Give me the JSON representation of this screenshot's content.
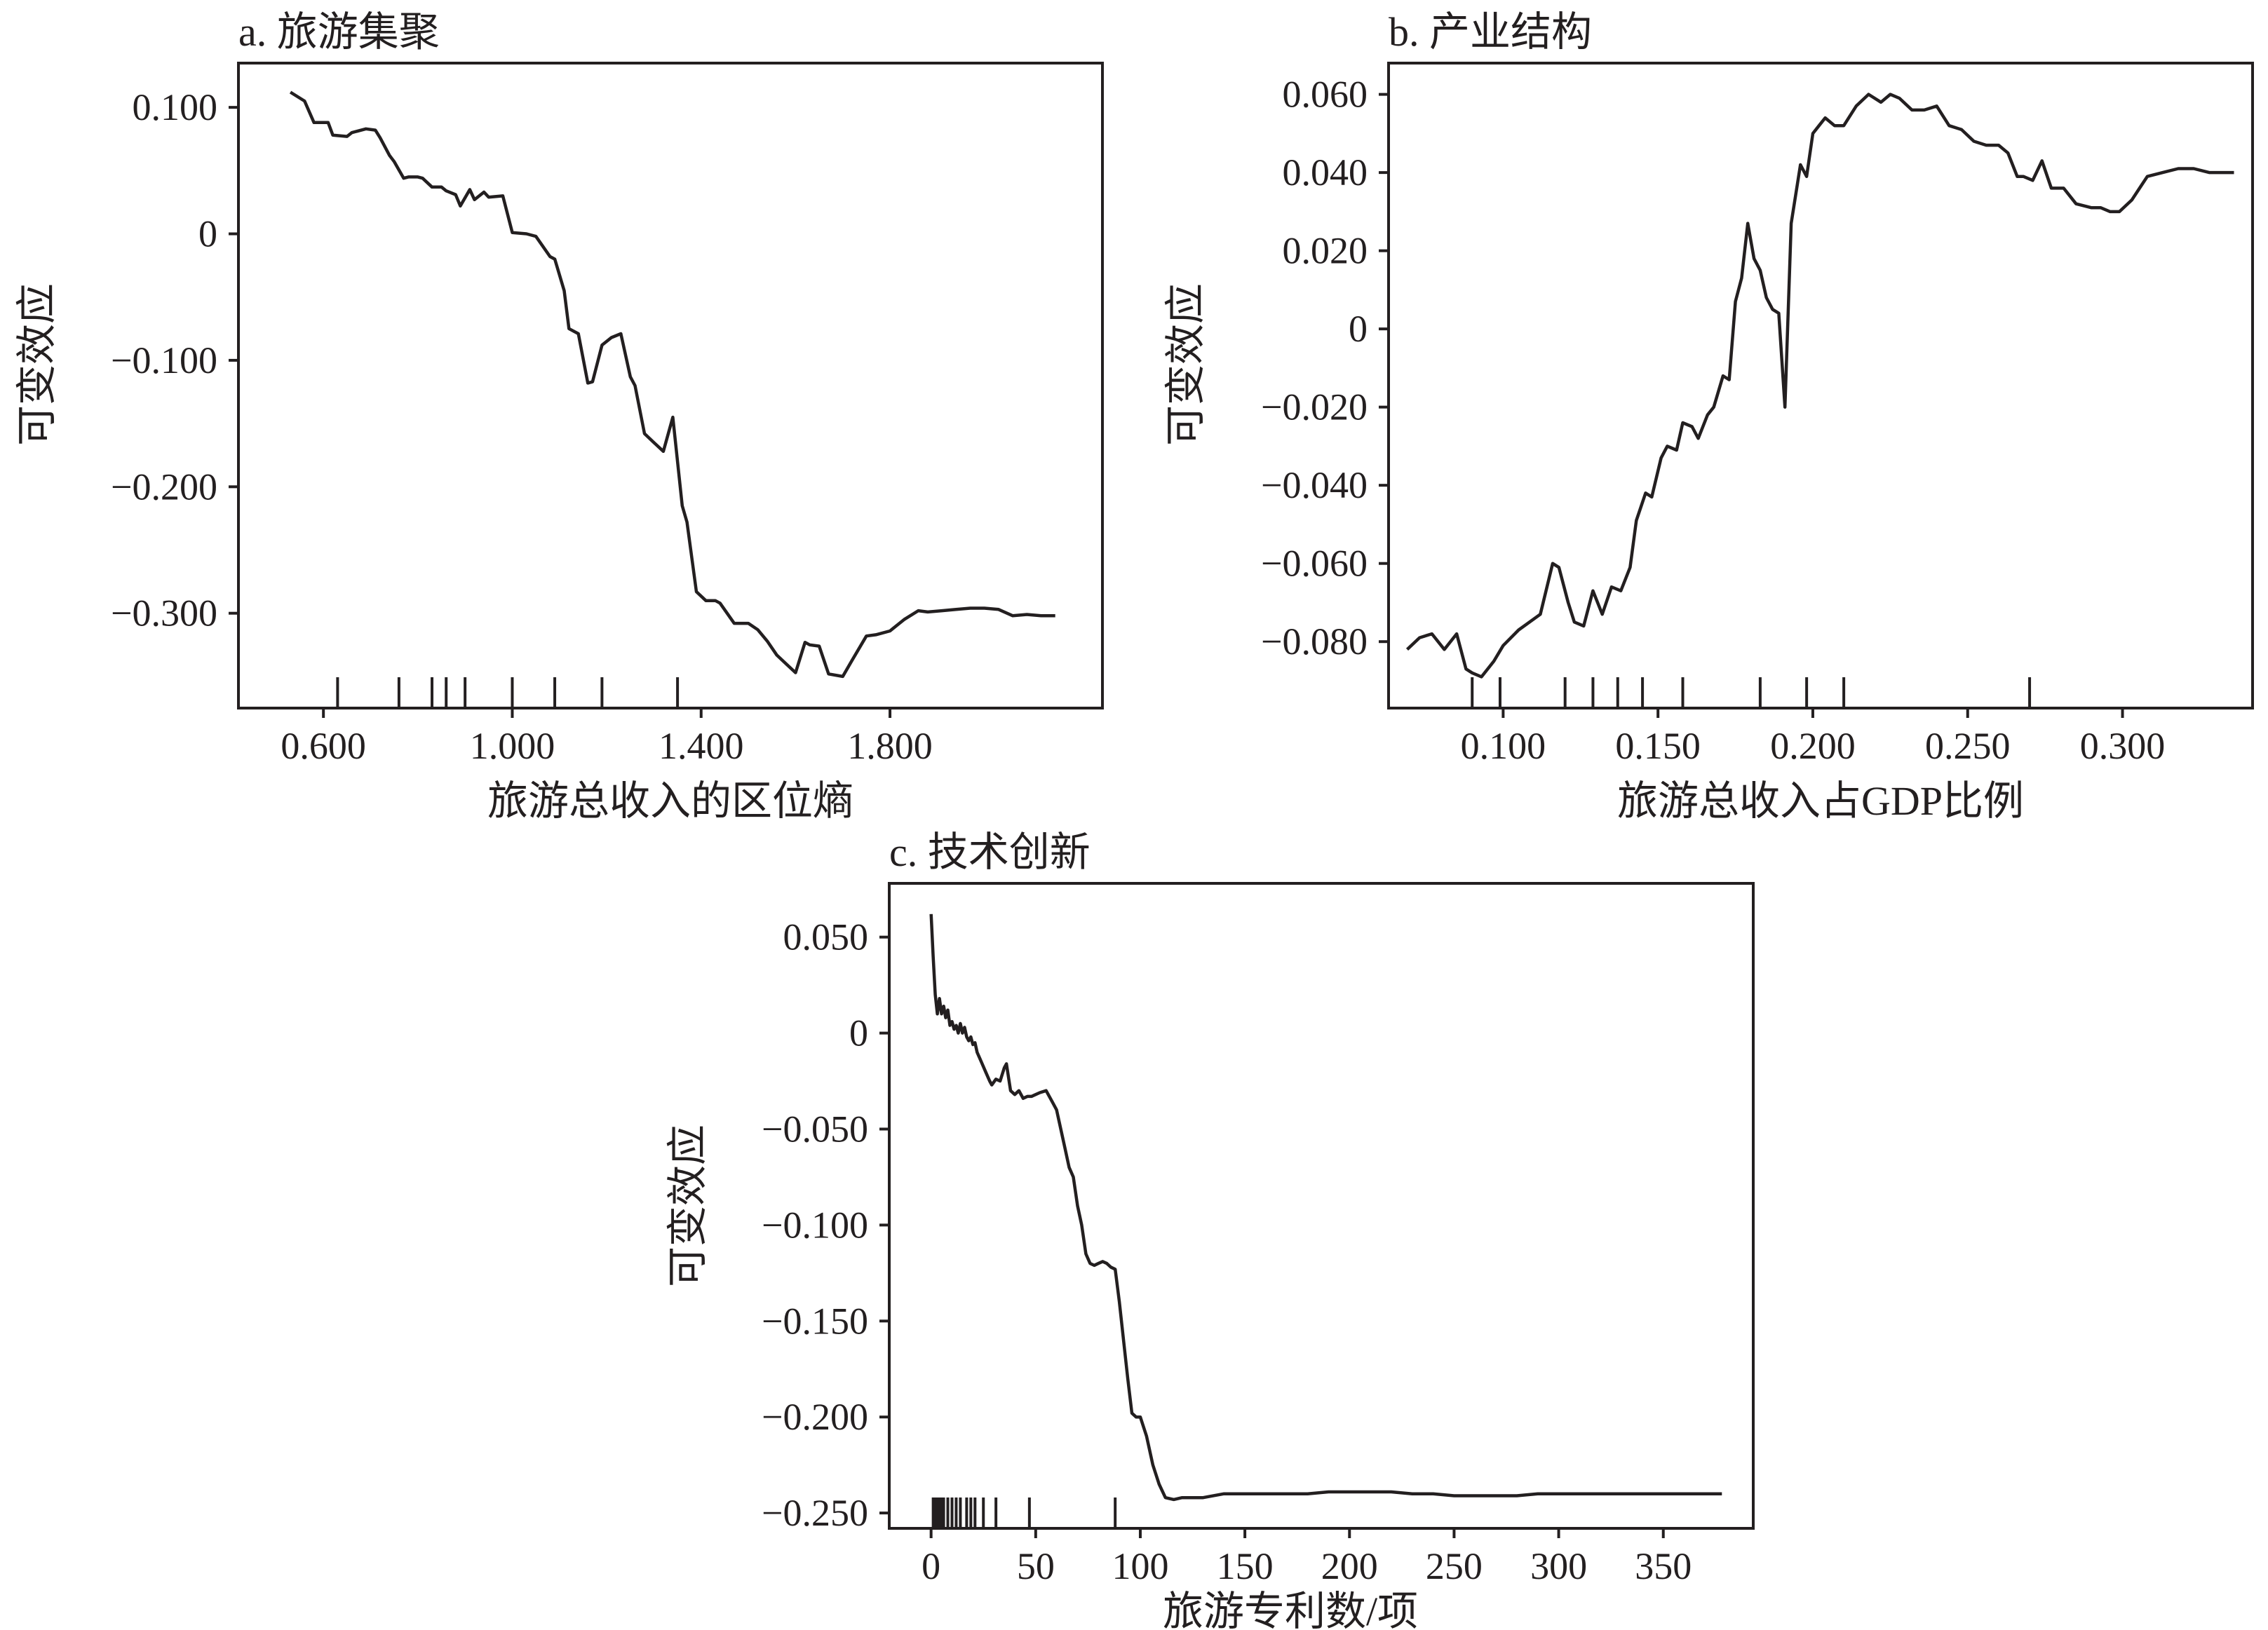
{
  "chart_data": [
    {
      "type": "line",
      "title": "a. 旅游集聚",
      "xlabel": "旅游总收入的区位熵",
      "ylabel": "可变效应",
      "xlim": [
        0.42,
        2.25
      ],
      "ylim": [
        -0.375,
        0.135
      ],
      "xticks": [
        0.6,
        1.0,
        1.4,
        1.8
      ],
      "xtick_labels": [
        "0.600",
        "1.000",
        "1.400",
        "1.800"
      ],
      "yticks": [
        0.1,
        0,
        -0.1,
        -0.2,
        -0.3
      ],
      "ytick_labels": [
        "0.100",
        "0",
        "−0.100",
        "−0.200",
        "−0.300"
      ],
      "rug": [
        0.63,
        0.76,
        0.83,
        0.86,
        0.9,
        1.0,
        1.09,
        1.19,
        1.35
      ],
      "series": [
        {
          "x": [
            0.53,
            0.56,
            0.58,
            0.61,
            0.62,
            0.65,
            0.66,
            0.69,
            0.71,
            0.72,
            0.74,
            0.75,
            0.77,
            0.78,
            0.8,
            0.81,
            0.83,
            0.85,
            0.86,
            0.88,
            0.89,
            0.91,
            0.92,
            0.94,
            0.95,
            0.98,
            1.0,
            1.03,
            1.05,
            1.08,
            1.09,
            1.11,
            1.12,
            1.14,
            1.16,
            1.17,
            1.19,
            1.21,
            1.23,
            1.25,
            1.26,
            1.28,
            1.3,
            1.32,
            1.34,
            1.36,
            1.37,
            1.39,
            1.41,
            1.43,
            1.44,
            1.47,
            1.5,
            1.52,
            1.54,
            1.56,
            1.58,
            1.6,
            1.62,
            1.63,
            1.65,
            1.67,
            1.7,
            1.72,
            1.75,
            1.77,
            1.8,
            1.83,
            1.86,
            1.88,
            1.91,
            1.94,
            1.97,
            2.0,
            2.03,
            2.06,
            2.09,
            2.12,
            2.15
          ],
          "y": [
            0.112,
            0.105,
            0.088,
            0.088,
            0.078,
            0.077,
            0.08,
            0.083,
            0.082,
            0.076,
            0.062,
            0.057,
            0.044,
            0.045,
            0.045,
            0.044,
            0.037,
            0.037,
            0.034,
            0.031,
            0.022,
            0.035,
            0.027,
            0.033,
            0.029,
            0.03,
            0.001,
            0.0,
            -0.002,
            -0.018,
            -0.02,
            -0.045,
            -0.075,
            -0.079,
            -0.118,
            -0.117,
            -0.088,
            -0.082,
            -0.079,
            -0.113,
            -0.12,
            -0.158,
            -0.165,
            -0.172,
            -0.145,
            -0.215,
            -0.228,
            -0.283,
            -0.29,
            -0.29,
            -0.292,
            -0.308,
            -0.308,
            -0.313,
            -0.322,
            -0.333,
            -0.34,
            -0.347,
            -0.323,
            -0.325,
            -0.326,
            -0.348,
            -0.35,
            -0.337,
            -0.318,
            -0.317,
            -0.314,
            -0.305,
            -0.298,
            -0.299,
            -0.298,
            -0.297,
            -0.296,
            -0.296,
            -0.297,
            -0.302,
            -0.301,
            -0.302,
            -0.302
          ]
        }
      ]
    },
    {
      "type": "line",
      "title": "b. 产业结构",
      "xlabel": "旅游总收入占GDP比例",
      "ylabel": "可变效应",
      "xlim": [
        0.063,
        0.342
      ],
      "ylim": [
        -0.097,
        0.068
      ],
      "xticks": [
        0.1,
        0.15,
        0.2,
        0.25,
        0.3
      ],
      "xtick_labels": [
        "0.100",
        "0.150",
        "0.200",
        "0.250",
        "0.300"
      ],
      "yticks": [
        0.06,
        0.04,
        0.02,
        0,
        -0.02,
        -0.04,
        -0.06,
        -0.08
      ],
      "ytick_labels": [
        "0.060",
        "0.040",
        "0.020",
        "0",
        "−0.020",
        "−0.040",
        "−0.060",
        "−0.080"
      ],
      "rug": [
        0.09,
        0.099,
        0.12,
        0.129,
        0.137,
        0.145,
        0.158,
        0.183,
        0.198,
        0.21,
        0.27
      ],
      "series": [
        {
          "x": [
            0.069,
            0.073,
            0.077,
            0.081,
            0.085,
            0.088,
            0.09,
            0.093,
            0.097,
            0.1,
            0.105,
            0.112,
            0.116,
            0.118,
            0.121,
            0.123,
            0.126,
            0.129,
            0.132,
            0.135,
            0.138,
            0.141,
            0.143,
            0.146,
            0.148,
            0.151,
            0.153,
            0.156,
            0.158,
            0.161,
            0.163,
            0.166,
            0.168,
            0.171,
            0.173,
            0.175,
            0.177,
            0.179,
            0.181,
            0.183,
            0.185,
            0.187,
            0.189,
            0.191,
            0.193,
            0.196,
            0.198,
            0.2,
            0.202,
            0.204,
            0.207,
            0.21,
            0.214,
            0.218,
            0.222,
            0.225,
            0.228,
            0.232,
            0.236,
            0.24,
            0.244,
            0.248,
            0.252,
            0.256,
            0.26,
            0.263,
            0.266,
            0.268,
            0.271,
            0.274,
            0.277,
            0.281,
            0.285,
            0.29,
            0.293,
            0.296,
            0.299,
            0.303,
            0.308,
            0.313,
            0.318,
            0.323,
            0.328,
            0.333,
            0.336
          ],
          "y": [
            -0.082,
            -0.079,
            -0.078,
            -0.082,
            -0.078,
            -0.087,
            -0.088,
            -0.089,
            -0.085,
            -0.081,
            -0.077,
            -0.073,
            -0.06,
            -0.061,
            -0.07,
            -0.075,
            -0.076,
            -0.067,
            -0.073,
            -0.066,
            -0.067,
            -0.061,
            -0.049,
            -0.042,
            -0.043,
            -0.033,
            -0.03,
            -0.031,
            -0.024,
            -0.025,
            -0.028,
            -0.022,
            -0.02,
            -0.012,
            -0.013,
            0.007,
            0.013,
            0.027,
            0.018,
            0.015,
            0.008,
            0.005,
            0.004,
            -0.02,
            0.027,
            0.042,
            0.039,
            0.05,
            0.052,
            0.054,
            0.052,
            0.052,
            0.057,
            0.06,
            0.058,
            0.06,
            0.059,
            0.056,
            0.056,
            0.057,
            0.052,
            0.051,
            0.048,
            0.047,
            0.047,
            0.045,
            0.039,
            0.039,
            0.038,
            0.043,
            0.036,
            0.036,
            0.032,
            0.031,
            0.031,
            0.03,
            0.03,
            0.033,
            0.039,
            0.04,
            0.041,
            0.041,
            0.04,
            0.04,
            0.04
          ]
        }
      ]
    },
    {
      "type": "line",
      "title": "c. 技术创新",
      "xlabel": "旅游专利数/项",
      "ylabel": "可变效应",
      "xlim": [
        -20,
        393
      ],
      "ylim": [
        -0.258,
        0.078
      ],
      "xticks": [
        0,
        50,
        100,
        150,
        200,
        250,
        300,
        350
      ],
      "xtick_labels": [
        "0",
        "50",
        "100",
        "150",
        "200",
        "250",
        "300",
        "350"
      ],
      "yticks": [
        0.05,
        0,
        -0.05,
        -0.1,
        -0.15,
        -0.2,
        -0.25
      ],
      "ytick_labels": [
        "0.050",
        "0",
        "−0.050",
        "−0.100",
        "−0.150",
        "−0.200",
        "−0.250"
      ],
      "rug": [
        1,
        2,
        3,
        4,
        5,
        6,
        8,
        10,
        12,
        14,
        17,
        19,
        21,
        25,
        31,
        47,
        88
      ],
      "series": [
        {
          "x": [
            0,
            1,
            2,
            3,
            4,
            5,
            6,
            7,
            8,
            9,
            10,
            11,
            12,
            13,
            14,
            15,
            16,
            17,
            18,
            19,
            20,
            21,
            22,
            24,
            26,
            28,
            29,
            31,
            33,
            35,
            36,
            38,
            40,
            42,
            44,
            46,
            48,
            50,
            52,
            55,
            58,
            60,
            62,
            64,
            66,
            68,
            70,
            72,
            74,
            76,
            78,
            80,
            82,
            84,
            86,
            88,
            90,
            92,
            94,
            96,
            98,
            100,
            103,
            106,
            109,
            112,
            116,
            120,
            125,
            130,
            140,
            150,
            160,
            170,
            180,
            190,
            200,
            210,
            220,
            230,
            240,
            250,
            260,
            270,
            280,
            290,
            300,
            320,
            340,
            360,
            378
          ],
          "y": [
            0.062,
            0.04,
            0.02,
            0.01,
            0.018,
            0.01,
            0.014,
            0.008,
            0.012,
            0.004,
            0.006,
            0.002,
            0.004,
            0.0,
            0.005,
            0.0,
            0.003,
            -0.002,
            -0.004,
            -0.002,
            -0.006,
            -0.005,
            -0.01,
            -0.015,
            -0.02,
            -0.025,
            -0.027,
            -0.024,
            -0.025,
            -0.018,
            -0.016,
            -0.03,
            -0.032,
            -0.03,
            -0.034,
            -0.033,
            -0.033,
            -0.032,
            -0.031,
            -0.03,
            -0.036,
            -0.04,
            -0.05,
            -0.06,
            -0.07,
            -0.075,
            -0.09,
            -0.1,
            -0.115,
            -0.12,
            -0.121,
            -0.12,
            -0.119,
            -0.12,
            -0.122,
            -0.123,
            -0.14,
            -0.16,
            -0.18,
            -0.198,
            -0.2,
            -0.2,
            -0.21,
            -0.225,
            -0.235,
            -0.242,
            -0.243,
            -0.242,
            -0.242,
            -0.242,
            -0.24,
            -0.24,
            -0.24,
            -0.24,
            -0.24,
            -0.239,
            -0.239,
            -0.239,
            -0.239,
            -0.24,
            -0.24,
            -0.241,
            -0.241,
            -0.241,
            -0.241,
            -0.24,
            -0.24,
            -0.24,
            -0.24,
            -0.24,
            -0.24
          ]
        }
      ]
    }
  ]
}
